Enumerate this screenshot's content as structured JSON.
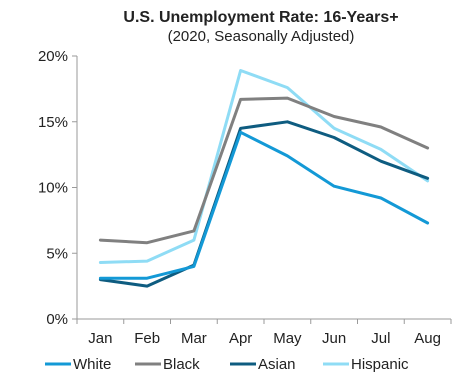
{
  "chart_data": {
    "type": "line",
    "title": "U.S. Unemployment Rate: 16-Years+",
    "subtitle": "(2020, Seasonally Adjusted)",
    "categories": [
      "Jan",
      "Feb",
      "Mar",
      "Apr",
      "May",
      "Jun",
      "Jul",
      "Aug"
    ],
    "y_ticks": [
      "0%",
      "5%",
      "10%",
      "15%",
      "20%"
    ],
    "y_tick_values": [
      0,
      5,
      10,
      15,
      20
    ],
    "ylim": [
      0,
      20
    ],
    "grid": false,
    "legend_position": "bottom",
    "series": [
      {
        "name": "White",
        "color": "#1399d6",
        "values": [
          3.1,
          3.1,
          4.0,
          14.2,
          12.4,
          10.1,
          9.2,
          7.3
        ]
      },
      {
        "name": "Black",
        "color": "#808080",
        "values": [
          6.0,
          5.8,
          6.7,
          16.7,
          16.8,
          15.4,
          14.6,
          13.0
        ]
      },
      {
        "name": "Asian",
        "color": "#0e5c80",
        "values": [
          3.0,
          2.5,
          4.1,
          14.5,
          15.0,
          13.8,
          12.0,
          10.7
        ]
      },
      {
        "name": "Hispanic",
        "color": "#8fdcf5",
        "values": [
          4.3,
          4.4,
          6.0,
          18.9,
          17.6,
          14.5,
          12.9,
          10.5
        ]
      }
    ]
  }
}
